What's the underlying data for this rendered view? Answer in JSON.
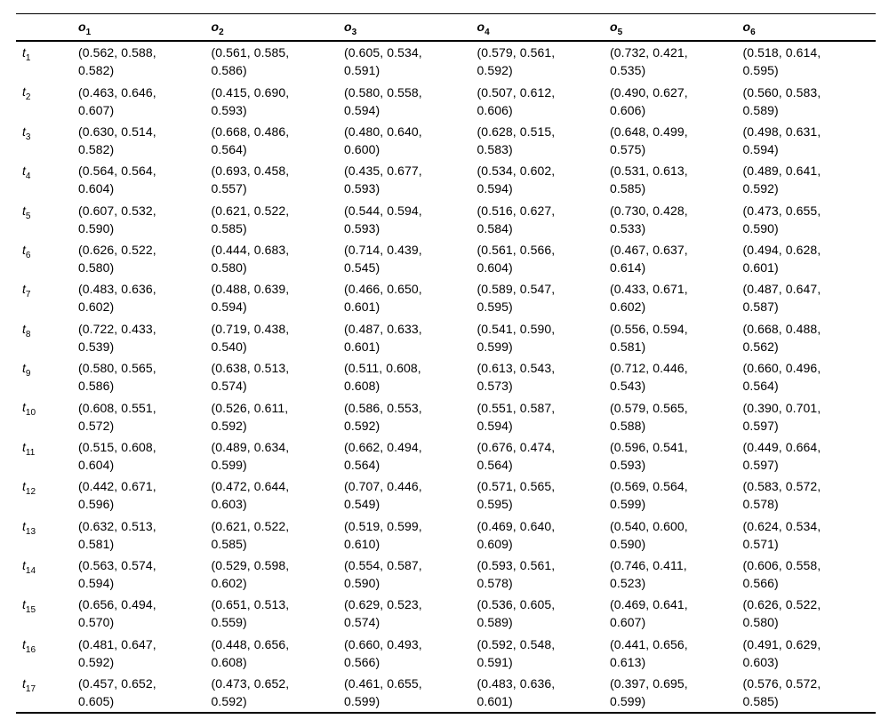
{
  "page": {
    "background": "#ffffff",
    "text_color": "#000000",
    "rule_color": "#000000"
  },
  "table": {
    "corner_label": "",
    "column_prefix": "o",
    "row_prefix": "t",
    "columns": [
      {
        "base": "o",
        "sub": "1"
      },
      {
        "base": "o",
        "sub": "2"
      },
      {
        "base": "o",
        "sub": "3"
      },
      {
        "base": "o",
        "sub": "4"
      },
      {
        "base": "o",
        "sub": "5"
      },
      {
        "base": "o",
        "sub": "6"
      }
    ],
    "rows": [
      {
        "base": "t",
        "sub": "1",
        "cells": [
          [
            "0.562",
            "0.588",
            "0.582"
          ],
          [
            "0.561",
            "0.585",
            "0.586"
          ],
          [
            "0.605",
            "0.534",
            "0.591"
          ],
          [
            "0.579",
            "0.561",
            "0.592"
          ],
          [
            "0.732",
            "0.421",
            "0.535"
          ],
          [
            "0.518",
            "0.614",
            "0.595"
          ]
        ]
      },
      {
        "base": "t",
        "sub": "2",
        "cells": [
          [
            "0.463",
            "0.646",
            "0.607"
          ],
          [
            "0.415",
            "0.690",
            "0.593"
          ],
          [
            "0.580",
            "0.558",
            "0.594"
          ],
          [
            "0.507",
            "0.612",
            "0.606"
          ],
          [
            "0.490",
            "0.627",
            "0.606"
          ],
          [
            "0.560",
            "0.583",
            "0.589"
          ]
        ]
      },
      {
        "base": "t",
        "sub": "3",
        "cells": [
          [
            "0.630",
            "0.514",
            "0.582"
          ],
          [
            "0.668",
            "0.486",
            "0.564"
          ],
          [
            "0.480",
            "0.640",
            "0.600"
          ],
          [
            "0.628",
            "0.515",
            "0.583"
          ],
          [
            "0.648",
            "0.499",
            "0.575"
          ],
          [
            "0.498",
            "0.631",
            "0.594"
          ]
        ]
      },
      {
        "base": "t",
        "sub": "4",
        "cells": [
          [
            "0.564",
            "0.564",
            "0.604"
          ],
          [
            "0.693",
            "0.458",
            "0.557"
          ],
          [
            "0.435",
            "0.677",
            "0.593"
          ],
          [
            "0.534",
            "0.602",
            "0.594"
          ],
          [
            "0.531",
            "0.613",
            "0.585"
          ],
          [
            "0.489",
            "0.641",
            "0.592"
          ]
        ]
      },
      {
        "base": "t",
        "sub": "5",
        "cells": [
          [
            "0.607",
            "0.532",
            "0.590"
          ],
          [
            "0.621",
            "0.522",
            "0.585"
          ],
          [
            "0.544",
            "0.594",
            "0.593"
          ],
          [
            "0.516",
            "0.627",
            "0.584"
          ],
          [
            "0.730",
            "0.428",
            "0.533"
          ],
          [
            "0.473",
            "0.655",
            "0.590"
          ]
        ]
      },
      {
        "base": "t",
        "sub": "6",
        "cells": [
          [
            "0.626",
            "0.522",
            "0.580"
          ],
          [
            "0.444",
            "0.683",
            "0.580"
          ],
          [
            "0.714",
            "0.439",
            "0.545"
          ],
          [
            "0.561",
            "0.566",
            "0.604"
          ],
          [
            "0.467",
            "0.637",
            "0.614"
          ],
          [
            "0.494",
            "0.628",
            "0.601"
          ]
        ]
      },
      {
        "base": "t",
        "sub": "7",
        "cells": [
          [
            "0.483",
            "0.636",
            "0.602"
          ],
          [
            "0.488",
            "0.639",
            "0.594"
          ],
          [
            "0.466",
            "0.650",
            "0.601"
          ],
          [
            "0.589",
            "0.547",
            "0.595"
          ],
          [
            "0.433",
            "0.671",
            "0.602"
          ],
          [
            "0.487",
            "0.647",
            "0.587"
          ]
        ]
      },
      {
        "base": "t",
        "sub": "8",
        "cells": [
          [
            "0.722",
            "0.433",
            "0.539"
          ],
          [
            "0.719",
            "0.438",
            "0.540"
          ],
          [
            "0.487",
            "0.633",
            "0.601"
          ],
          [
            "0.541",
            "0.590",
            "0.599"
          ],
          [
            "0.556",
            "0.594",
            "0.581"
          ],
          [
            "0.668",
            "0.488",
            "0.562"
          ]
        ]
      },
      {
        "base": "t",
        "sub": "9",
        "cells": [
          [
            "0.580",
            "0.565",
            "0.586"
          ],
          [
            "0.638",
            "0.513",
            "0.574"
          ],
          [
            "0.511",
            "0.608",
            "0.608"
          ],
          [
            "0.613",
            "0.543",
            "0.573"
          ],
          [
            "0.712",
            "0.446",
            "0.543"
          ],
          [
            "0.660",
            "0.496",
            "0.564"
          ]
        ]
      },
      {
        "base": "t",
        "sub": "10",
        "cells": [
          [
            "0.608",
            "0.551",
            "0.572"
          ],
          [
            "0.526",
            "0.611",
            "0.592"
          ],
          [
            "0.586",
            "0.553",
            "0.592"
          ],
          [
            "0.551",
            "0.587",
            "0.594"
          ],
          [
            "0.579",
            "0.565",
            "0.588"
          ],
          [
            "0.390",
            "0.701",
            "0.597"
          ]
        ]
      },
      {
        "base": "t",
        "sub": "11",
        "cells": [
          [
            "0.515",
            "0.608",
            "0.604"
          ],
          [
            "0.489",
            "0.634",
            "0.599"
          ],
          [
            "0.662",
            "0.494",
            "0.564"
          ],
          [
            "0.676",
            "0.474",
            "0.564"
          ],
          [
            "0.596",
            "0.541",
            "0.593"
          ],
          [
            "0.449",
            "0.664",
            "0.597"
          ]
        ]
      },
      {
        "base": "t",
        "sub": "12",
        "cells": [
          [
            "0.442",
            "0.671",
            "0.596"
          ],
          [
            "0.472",
            "0.644",
            "0.603"
          ],
          [
            "0.707",
            "0.446",
            "0.549"
          ],
          [
            "0.571",
            "0.565",
            "0.595"
          ],
          [
            "0.569",
            "0.564",
            "0.599"
          ],
          [
            "0.583",
            "0.572",
            "0.578"
          ]
        ]
      },
      {
        "base": "t",
        "sub": "13",
        "cells": [
          [
            "0.632",
            "0.513",
            "0.581"
          ],
          [
            "0.621",
            "0.522",
            "0.585"
          ],
          [
            "0.519",
            "0.599",
            "0.610"
          ],
          [
            "0.469",
            "0.640",
            "0.609"
          ],
          [
            "0.540",
            "0.600",
            "0.590"
          ],
          [
            "0.624",
            "0.534",
            "0.571"
          ]
        ]
      },
      {
        "base": "t",
        "sub": "14",
        "cells": [
          [
            "0.563",
            "0.574",
            "0.594"
          ],
          [
            "0.529",
            "0.598",
            "0.602"
          ],
          [
            "0.554",
            "0.587",
            "0.590"
          ],
          [
            "0.593",
            "0.561",
            "0.578"
          ],
          [
            "0.746",
            "0.411",
            "0.523"
          ],
          [
            "0.606",
            "0.558",
            "0.566"
          ]
        ]
      },
      {
        "base": "t",
        "sub": "15",
        "cells": [
          [
            "0.656",
            "0.494",
            "0.570"
          ],
          [
            "0.651",
            "0.513",
            "0.559"
          ],
          [
            "0.629",
            "0.523",
            "0.574"
          ],
          [
            "0.536",
            "0.605",
            "0.589"
          ],
          [
            "0.469",
            "0.641",
            "0.607"
          ],
          [
            "0.626",
            "0.522",
            "0.580"
          ]
        ]
      },
      {
        "base": "t",
        "sub": "16",
        "cells": [
          [
            "0.481",
            "0.647",
            "0.592"
          ],
          [
            "0.448",
            "0.656",
            "0.608"
          ],
          [
            "0.660",
            "0.493",
            "0.566"
          ],
          [
            "0.592",
            "0.548",
            "0.591"
          ],
          [
            "0.441",
            "0.656",
            "0.613"
          ],
          [
            "0.491",
            "0.629",
            "0.603"
          ]
        ]
      },
      {
        "base": "t",
        "sub": "17",
        "cells": [
          [
            "0.457",
            "0.652",
            "0.605"
          ],
          [
            "0.473",
            "0.652",
            "0.592"
          ],
          [
            "0.461",
            "0.655",
            "0.599"
          ],
          [
            "0.483",
            "0.636",
            "0.601"
          ],
          [
            "0.397",
            "0.695",
            "0.599"
          ],
          [
            "0.576",
            "0.572",
            "0.585"
          ]
        ]
      }
    ]
  }
}
